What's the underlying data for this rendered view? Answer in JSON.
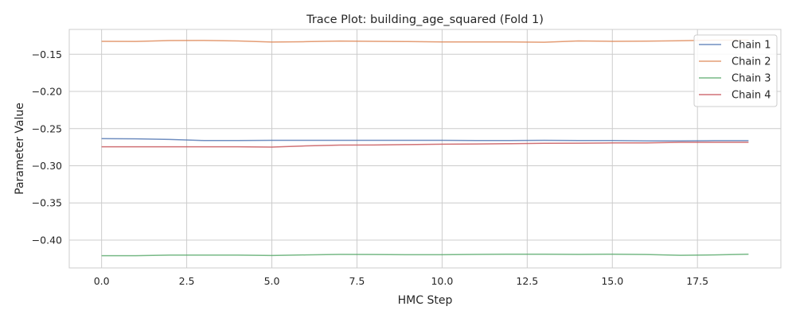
{
  "chart_data": {
    "type": "line",
    "title": "Trace Plot: building_age_squared (Fold 1)",
    "xlabel": "HMC Step",
    "ylabel": "Parameter Value",
    "xlim": [
      -0.95,
      19.95
    ],
    "ylim": [
      -0.4375,
      -0.1165
    ],
    "xticks": [
      0.0,
      2.5,
      5.0,
      7.5,
      10.0,
      12.5,
      15.0,
      17.5
    ],
    "xtick_labels": [
      "0.0",
      "2.5",
      "5.0",
      "7.5",
      "10.0",
      "12.5",
      "15.0",
      "17.5"
    ],
    "yticks": [
      -0.4,
      -0.35,
      -0.3,
      -0.25,
      -0.2,
      -0.15
    ],
    "ytick_labels": [
      "−0.40",
      "−0.35",
      "−0.30",
      "−0.25",
      "−0.20",
      "−0.15"
    ],
    "grid": true,
    "legend_position": "top-right",
    "x": [
      0,
      1,
      2,
      3,
      4,
      5,
      6,
      7,
      8,
      9,
      10,
      11,
      12,
      13,
      14,
      15,
      16,
      17,
      18,
      19
    ],
    "series": [
      {
        "name": "Chain 1",
        "color": "#4c72b0",
        "values": [
          -0.2635,
          -0.2638,
          -0.2645,
          -0.266,
          -0.266,
          -0.2658,
          -0.2658,
          -0.2658,
          -0.2658,
          -0.2657,
          -0.2657,
          -0.266,
          -0.266,
          -0.2657,
          -0.266,
          -0.266,
          -0.2665,
          -0.2665,
          -0.2662,
          -0.2662
        ]
      },
      {
        "name": "Chain 2",
        "color": "#dd8452",
        "values": [
          -0.1325,
          -0.1327,
          -0.1315,
          -0.1313,
          -0.132,
          -0.1335,
          -0.133,
          -0.1322,
          -0.1325,
          -0.1328,
          -0.1333,
          -0.1333,
          -0.1333,
          -0.1338,
          -0.132,
          -0.1325,
          -0.1323,
          -0.1318,
          -0.131,
          -0.131
        ]
      },
      {
        "name": "Chain 3",
        "color": "#55a868",
        "values": [
          -0.421,
          -0.421,
          -0.4203,
          -0.4203,
          -0.4203,
          -0.4208,
          -0.42,
          -0.4193,
          -0.4195,
          -0.4197,
          -0.4197,
          -0.4193,
          -0.419,
          -0.419,
          -0.4193,
          -0.419,
          -0.4195,
          -0.4205,
          -0.42,
          -0.419
        ]
      },
      {
        "name": "Chain 4",
        "color": "#c44e52",
        "values": [
          -0.2745,
          -0.2745,
          -0.2745,
          -0.2745,
          -0.2745,
          -0.2748,
          -0.2733,
          -0.2722,
          -0.272,
          -0.2715,
          -0.271,
          -0.2707,
          -0.2703,
          -0.2698,
          -0.2697,
          -0.2693,
          -0.2692,
          -0.2685,
          -0.2685,
          -0.2685
        ]
      }
    ]
  }
}
